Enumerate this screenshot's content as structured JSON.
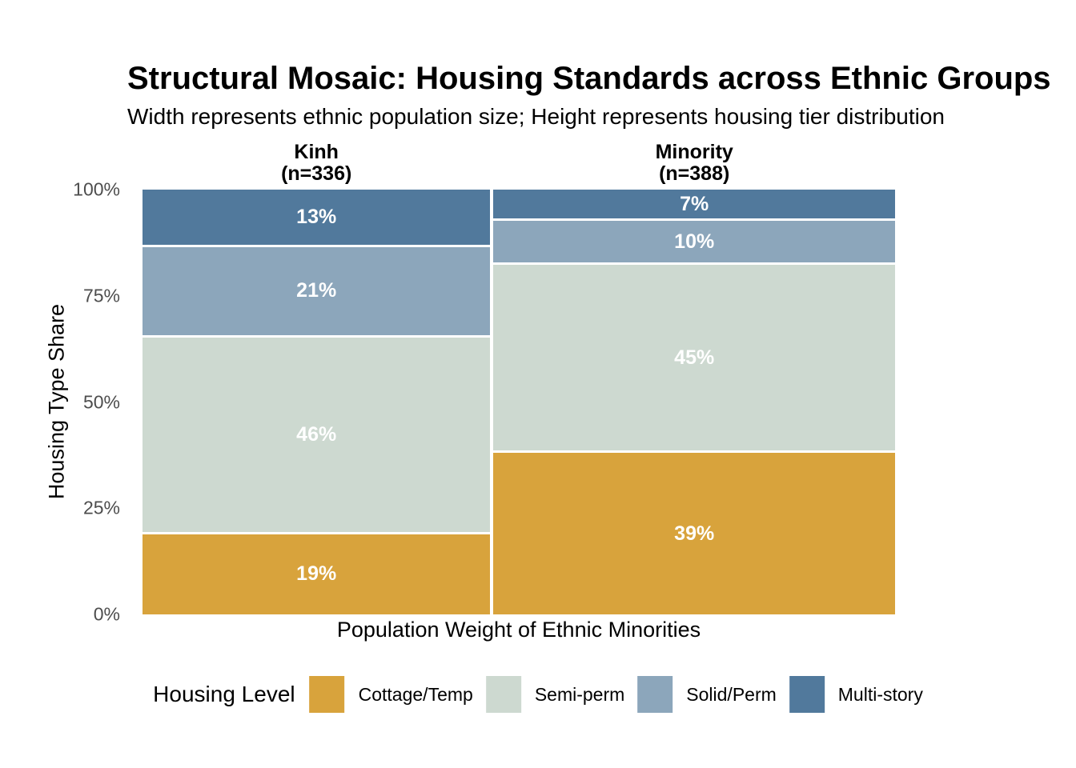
{
  "figure": {
    "title": "Structural Mosaic: Housing Standards across Ethnic Groups",
    "subtitle": "Width represents ethnic population size; Height represents housing tier distribution"
  },
  "chart_data": {
    "type": "bar",
    "variant": "mosaic (variable-width 100% stacked bars)",
    "title": "Structural Mosaic: Housing Standards across Ethnic Groups",
    "subtitle": "Width represents ethnic population size; Height represents housing tier distribution",
    "xlabel": "Population Weight of Ethnic Minorities",
    "ylabel": "Housing Type Share",
    "ylim": [
      0,
      100
    ],
    "grid": false,
    "y_axis": {
      "tick_color": "#4D4D4D",
      "ticks": [
        {
          "label": "100%",
          "value": 100
        },
        {
          "label": "75%",
          "value": 75
        },
        {
          "label": "50%",
          "value": 50
        },
        {
          "label": "25%",
          "value": 25
        },
        {
          "label": "0%",
          "value": 0
        }
      ]
    },
    "legend": {
      "title": "Housing Level",
      "position": "bottom",
      "entries": [
        {
          "label": "Cottage/Temp",
          "color": "#D8A33C"
        },
        {
          "label": "Semi-perm",
          "color": "#CDD9D0"
        },
        {
          "label": "Solid/Perm",
          "color": "#8CA6BB"
        },
        {
          "label": "Multi-story",
          "color": "#51799C"
        }
      ]
    },
    "columns": [
      {
        "group": "Kinh",
        "n": 336,
        "header_line1": "Kinh",
        "header_line2": "(n=336)",
        "segments_top_to_bottom": [
          {
            "level": "Multi-story",
            "pct": 13,
            "label": "13%",
            "color": "#51799C"
          },
          {
            "level": "Solid/Perm",
            "pct": 21,
            "label": "21%",
            "color": "#8CA6BB"
          },
          {
            "level": "Semi-perm",
            "pct": 46,
            "label": "46%",
            "color": "#CDD9D0"
          },
          {
            "level": "Cottage/Temp",
            "pct": 19,
            "label": "19%",
            "color": "#D8A33C"
          }
        ]
      },
      {
        "group": "Minority",
        "n": 388,
        "header_line1": "Minority",
        "header_line2": "(n=388)",
        "segments_top_to_bottom": [
          {
            "level": "Multi-story",
            "pct": 7,
            "label": "7%",
            "color": "#51799C"
          },
          {
            "level": "Solid/Perm",
            "pct": 10,
            "label": "10%",
            "color": "#8CA6BB"
          },
          {
            "level": "Semi-perm",
            "pct": 45,
            "label": "45%",
            "color": "#CDD9D0"
          },
          {
            "level": "Cottage/Temp",
            "pct": 39,
            "label": "39%",
            "color": "#D8A33C"
          }
        ]
      }
    ]
  }
}
